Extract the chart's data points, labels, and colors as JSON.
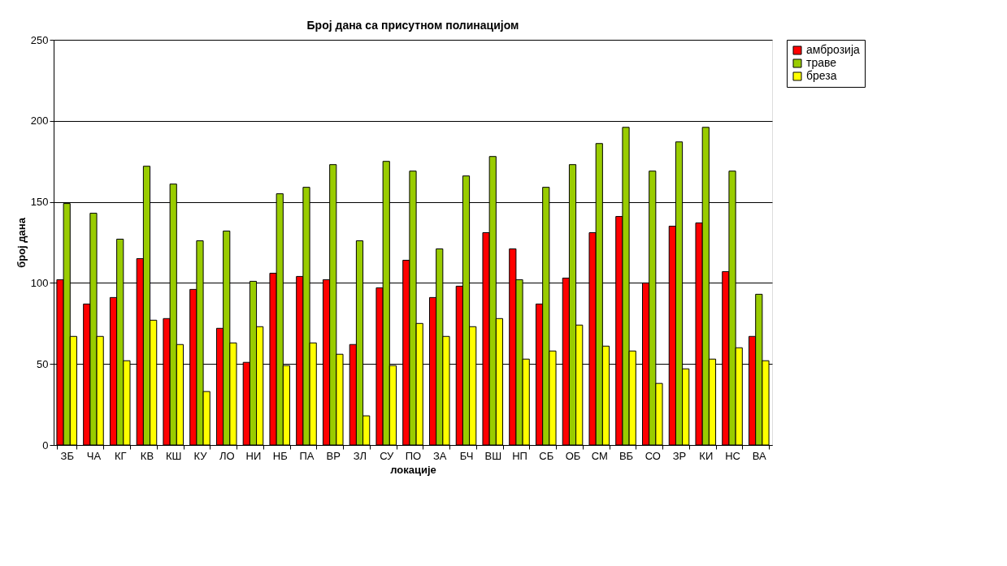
{
  "chart_data": {
    "type": "bar",
    "title": "Број дана са присутном полинацијом",
    "xlabel": "локације",
    "ylabel": "број дана",
    "categories": [
      "ЗБ",
      "ЧА",
      "КГ",
      "КВ",
      "КШ",
      "КУ",
      "ЛО",
      "НИ",
      "НБ",
      "ПА",
      "ВР",
      "ЗЛ",
      "СУ",
      "ПО",
      "ЗА",
      "БЧ",
      "ВШ",
      "НП",
      "СБ",
      "ОБ",
      "СМ",
      "ВБ",
      "СО",
      "ЗР",
      "КИ",
      "НС",
      "ВА"
    ],
    "series": [
      {
        "name": "амброзија",
        "color": "#ff0000",
        "values": [
          102,
          87,
          91,
          115,
          78,
          96,
          72,
          51,
          106,
          104,
          102,
          62,
          97,
          114,
          91,
          98,
          131,
          121,
          87,
          103,
          131,
          141,
          100,
          135,
          137,
          107,
          67
        ]
      },
      {
        "name": "траве",
        "color": "#99cc00",
        "values": [
          149,
          143,
          127,
          172,
          161,
          126,
          132,
          101,
          155,
          159,
          173,
          126,
          175,
          169,
          121,
          166,
          178,
          102,
          159,
          173,
          186,
          196,
          169,
          187,
          196,
          169,
          93
        ]
      },
      {
        "name": "бреза",
        "color": "#ffff00",
        "values": [
          67,
          67,
          52,
          77,
          62,
          33,
          63,
          73,
          49,
          63,
          56,
          18,
          49,
          75,
          67,
          73,
          78,
          53,
          58,
          74,
          61,
          58,
          38,
          47,
          53,
          60,
          52
        ]
      }
    ],
    "ylim": [
      0,
      250
    ],
    "yticks": [
      0,
      50,
      100,
      150,
      200,
      250
    ],
    "grid": "y",
    "legend": "right"
  }
}
